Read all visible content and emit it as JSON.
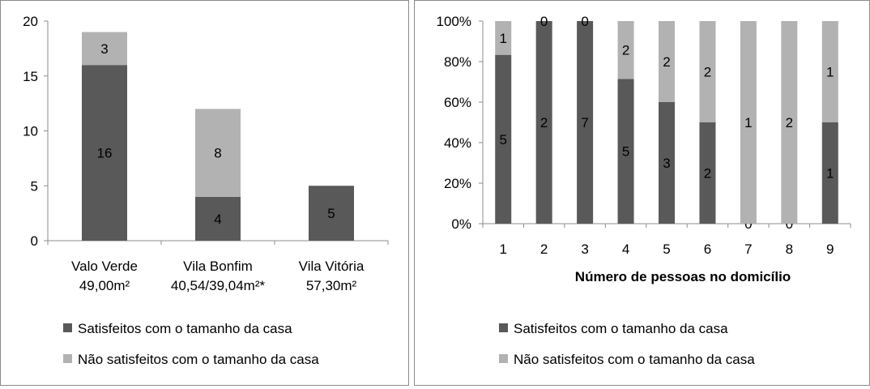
{
  "chart_data": [
    {
      "type": "bar",
      "stacked": true,
      "categories": [
        "Valo Verde\n49,00m²",
        "Vila Bonfim\n40,54/39,04m²*",
        "Vila Vitória\n57,30m²"
      ],
      "series": [
        {
          "name": "Satisfeitos com o tamanho da casa",
          "values": [
            16,
            4,
            5
          ],
          "color": "#595959"
        },
        {
          "name": "Não satisfeitos com o tamanho da casa",
          "values": [
            3,
            8,
            0
          ],
          "color": "#b2b2b2"
        }
      ],
      "ylim": [
        0,
        20
      ],
      "yticks": [
        0,
        5,
        10,
        15,
        20
      ],
      "data_labels": [
        [
          "16",
          "4",
          "5"
        ],
        [
          "3",
          "8",
          ""
        ]
      ],
      "xlabel": "",
      "ylabel": "",
      "grid": false,
      "legend_position": "bottom"
    },
    {
      "type": "bar",
      "stacked": true,
      "normalized": true,
      "categories": [
        "1",
        "2",
        "3",
        "4",
        "5",
        "6",
        "7",
        "8",
        "9"
      ],
      "series": [
        {
          "name": "Satisfeitos com o tamanho da casa",
          "values": [
            5,
            2,
            7,
            5,
            3,
            2,
            0,
            0,
            1
          ],
          "color": "#595959"
        },
        {
          "name": "Não satisfeitos com o tamanho da casa",
          "values": [
            1,
            0,
            0,
            2,
            2,
            2,
            1,
            2,
            1
          ],
          "color": "#b2b2b2"
        }
      ],
      "ylim": [
        0,
        100
      ],
      "yticks": [
        "0%",
        "20%",
        "40%",
        "60%",
        "80%",
        "100%"
      ],
      "xlabel": "Número de pessoas no domicílio",
      "ylabel": "",
      "grid": false,
      "legend_position": "bottom"
    }
  ]
}
